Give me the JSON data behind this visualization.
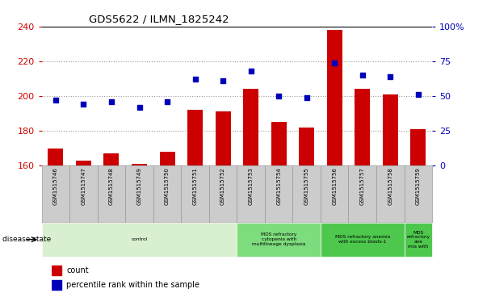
{
  "title": "GDS5622 / ILMN_1825242",
  "samples": [
    "GSM1515746",
    "GSM1515747",
    "GSM1515748",
    "GSM1515749",
    "GSM1515750",
    "GSM1515751",
    "GSM1515752",
    "GSM1515753",
    "GSM1515754",
    "GSM1515755",
    "GSM1515756",
    "GSM1515757",
    "GSM1515758",
    "GSM1515759"
  ],
  "counts": [
    170,
    163,
    167,
    161,
    168,
    192,
    191,
    204,
    185,
    182,
    238,
    204,
    201,
    181
  ],
  "percentile_ranks": [
    47,
    44,
    46,
    42,
    46,
    62,
    61,
    68,
    50,
    49,
    74,
    65,
    64,
    51
  ],
  "ylim_left": [
    160,
    240
  ],
  "ylim_right": [
    0,
    100
  ],
  "yticks_left": [
    160,
    180,
    200,
    220,
    240
  ],
  "yticks_right": [
    0,
    25,
    50,
    75,
    100
  ],
  "bar_color": "#cc0000",
  "dot_color": "#0000bb",
  "grid_color": "#999999",
  "disease_groups": [
    {
      "label": "control",
      "start": 0,
      "end": 7,
      "color": "#d8f0d0"
    },
    {
      "label": "MDS refractory\ncytopenia with\nmultilineage dysplasia",
      "start": 7,
      "end": 10,
      "color": "#7ddc7d"
    },
    {
      "label": "MDS refractory anemia\nwith excess blasts-1",
      "start": 10,
      "end": 13,
      "color": "#4dc84d"
    },
    {
      "label": "MDS\nrefractory\nane\nmia with",
      "start": 13,
      "end": 14,
      "color": "#4dc84d"
    }
  ],
  "disease_state_label": "disease state",
  "legend_count_label": "count",
  "legend_percentile_label": "percentile rank within the sample",
  "background_color": "#ffffff",
  "sample_box_color": "#cccccc",
  "sample_box_edge": "#999999"
}
